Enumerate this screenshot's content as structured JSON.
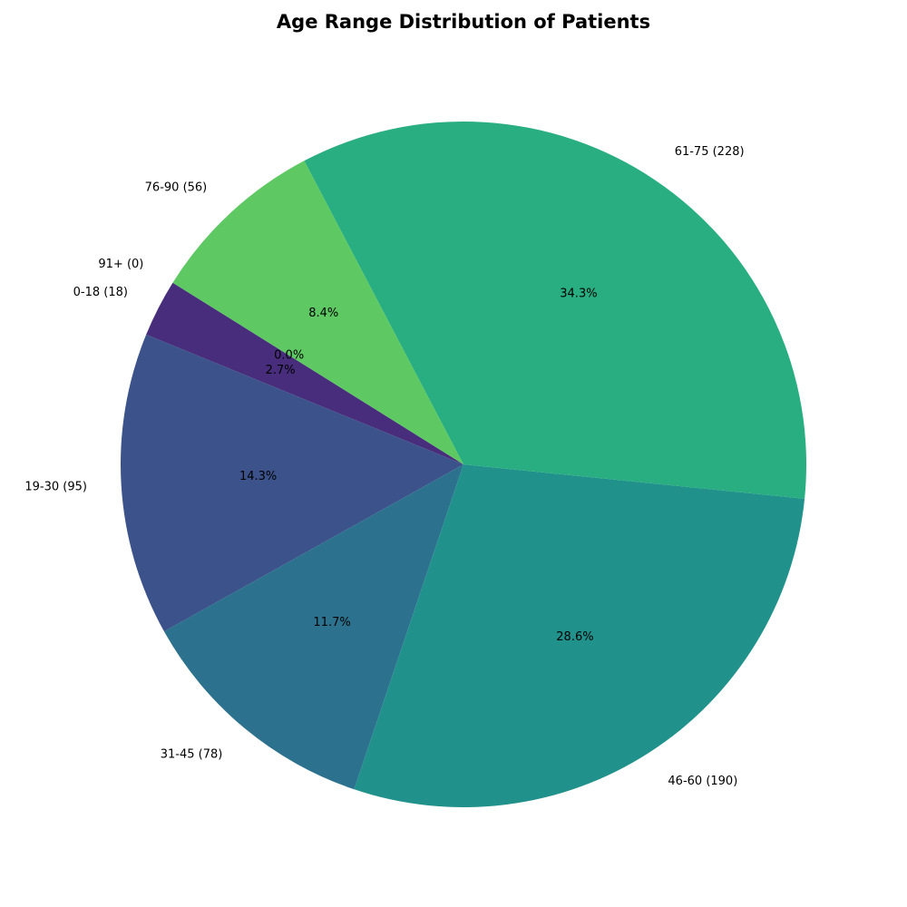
{
  "chart_data": {
    "type": "pie",
    "title": "Age Range Distribution of Patients",
    "slices": [
      {
        "category": "0-18",
        "value": 18,
        "label": "0-18 (18)",
        "pct_label": "2.7%",
        "color": "#472d7b"
      },
      {
        "category": "19-30",
        "value": 95,
        "label": "19-30 (95)",
        "pct_label": "14.3%",
        "color": "#3b528b"
      },
      {
        "category": "31-45",
        "value": 78,
        "label": "31-45 (78)",
        "pct_label": "11.7%",
        "color": "#2c728e"
      },
      {
        "category": "46-60",
        "value": 190,
        "label": "46-60 (190)",
        "pct_label": "28.6%",
        "color": "#21918c"
      },
      {
        "category": "61-75",
        "value": 228,
        "label": "61-75 (228)",
        "pct_label": "34.3%",
        "color": "#28ae80"
      },
      {
        "category": "76-90",
        "value": 56,
        "label": "76-90 (56)",
        "pct_label": "8.4%",
        "color": "#5ec962"
      },
      {
        "category": "91+",
        "value": 0,
        "label": "91+ (0)",
        "pct_label": "0.0%",
        "color": "#fde725"
      }
    ],
    "start_angle_deg": 148,
    "direction": "counterclockwise",
    "legend": "none"
  }
}
